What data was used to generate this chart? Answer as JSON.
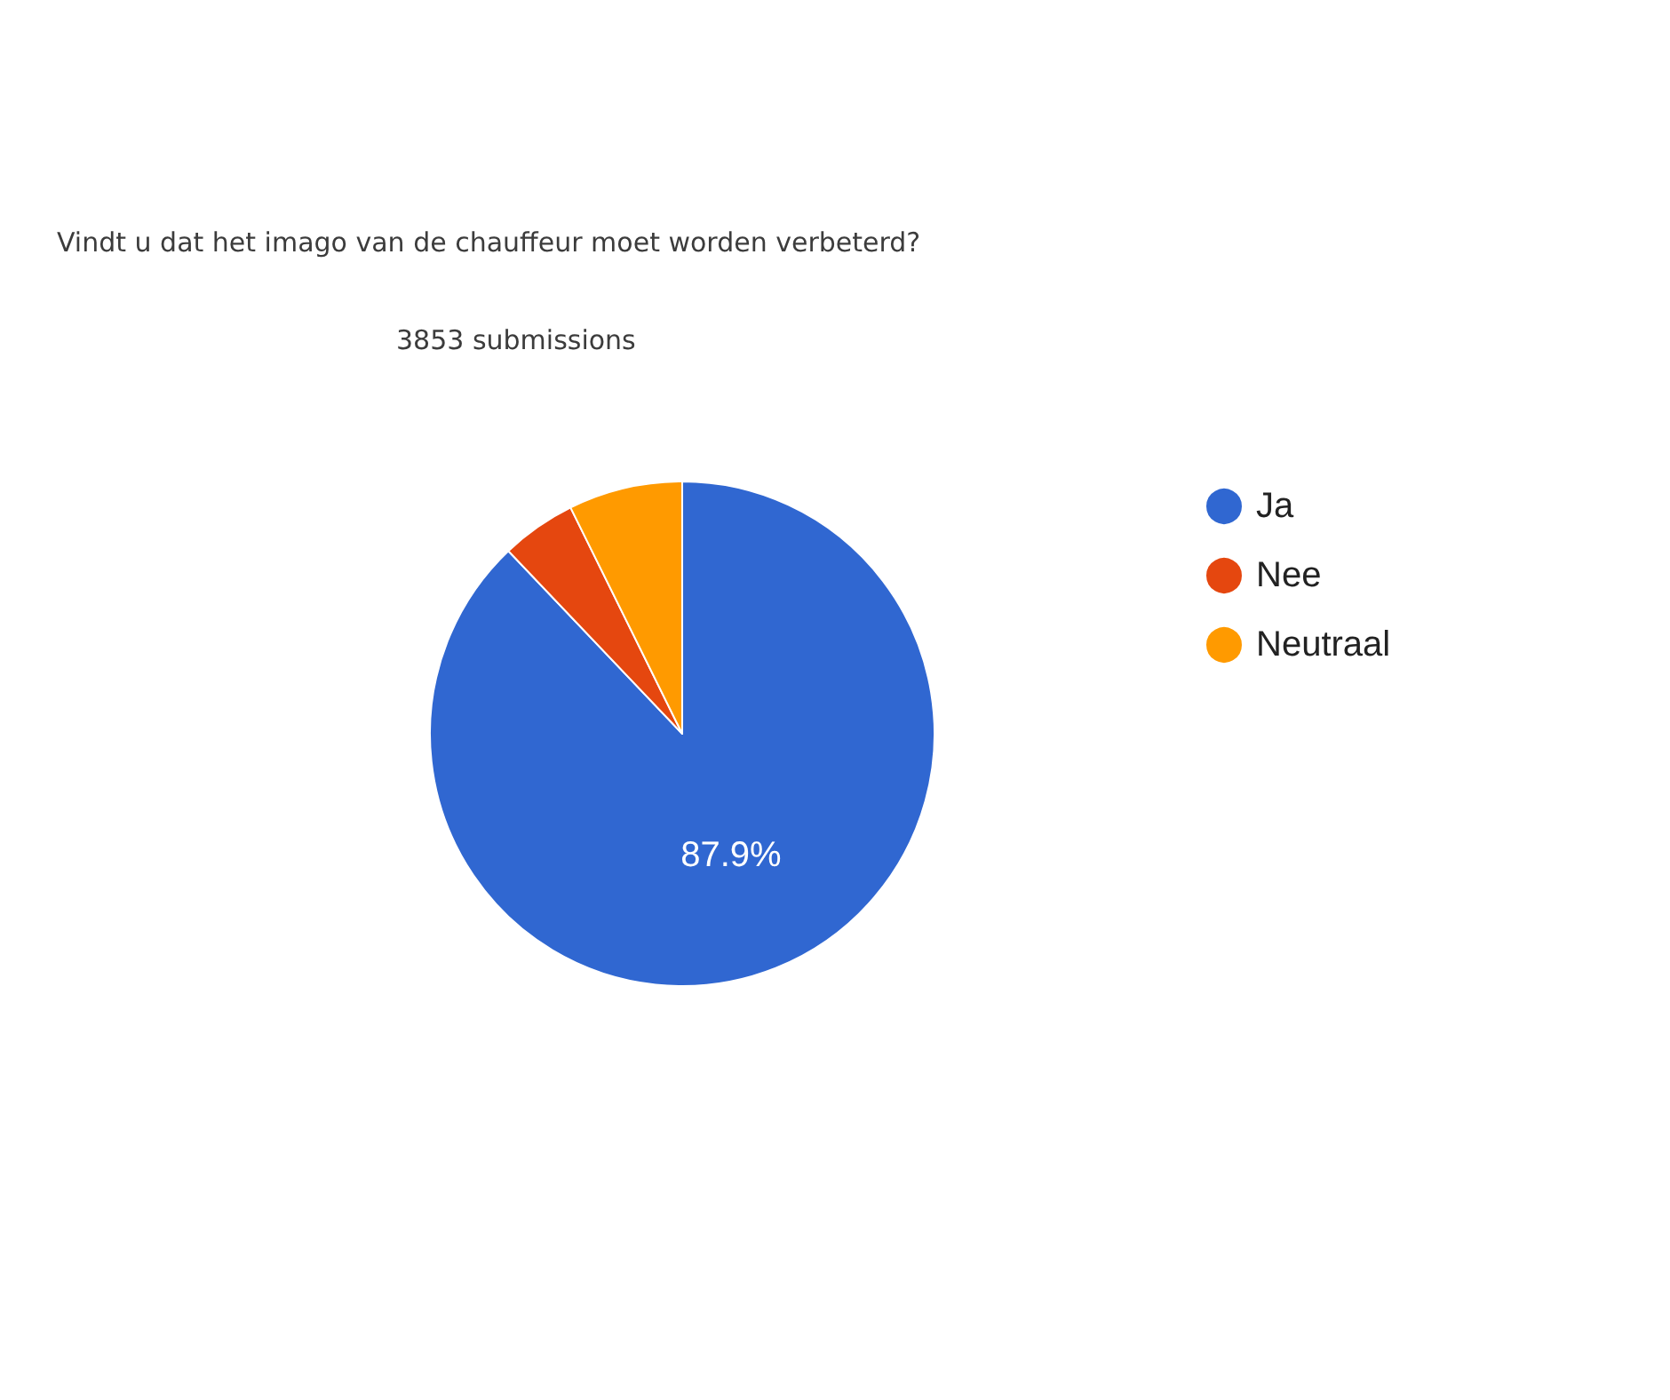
{
  "chart_data": {
    "type": "pie",
    "title": "Vindt u dat het imago van de chauffeur moet worden verbeterd?",
    "subtitle": "3853 submissions",
    "categories": [
      "Ja",
      "Nee",
      "Neutraal"
    ],
    "values": [
      87.9,
      4.8,
      7.3
    ],
    "colors": [
      "#3067d1",
      "#e5470f",
      "#ff9a00"
    ],
    "value_labels": [
      "87.9%",
      null,
      null
    ],
    "legend": "right"
  }
}
